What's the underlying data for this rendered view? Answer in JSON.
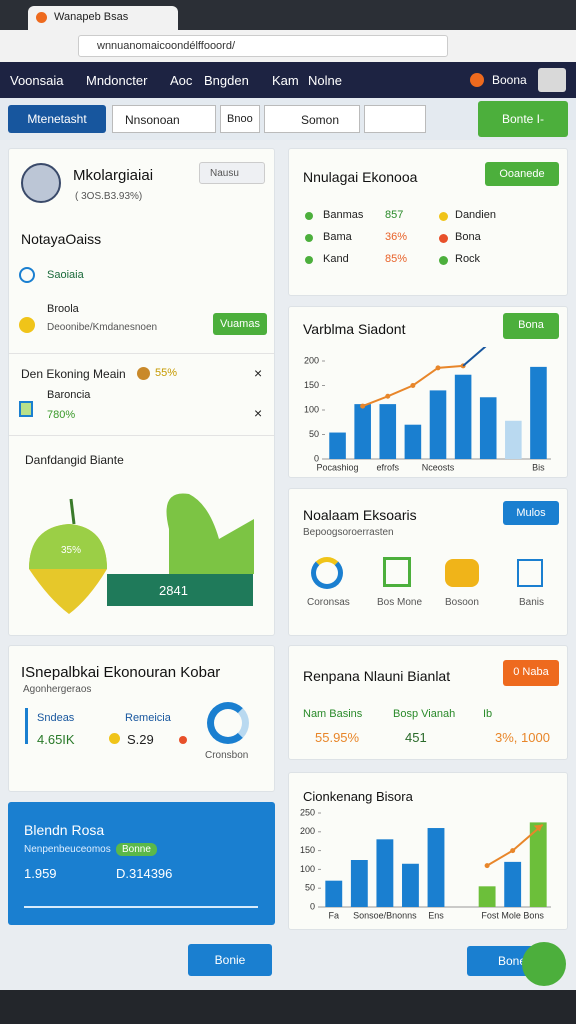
{
  "browser": {
    "tab_title": "Wanapeb Bsas",
    "url": "wnnuanomaicoondélffooord/"
  },
  "nav": {
    "items": [
      "Voonsaia",
      "Mndoncter",
      "Aoc",
      "Bngden",
      "Kam",
      "Nolne"
    ],
    "user": "Boona"
  },
  "toolbar": {
    "search": "Mtenetasht",
    "input": "Nnsonoan",
    "field": "Bnoo",
    "filter": "Somon",
    "button": "Bonte I-"
  },
  "profile": {
    "name": "Mkolargiaiai",
    "sub": "( 3OS.B3.93%)",
    "dropdown": "Nausu",
    "section": "NotayaOaiss",
    "item1": "Saoiaia",
    "item2_title": "Broola",
    "item2_sub": "Deoonibe/Kmdanesnoen",
    "button": "Vuamas",
    "alert1": "Den Ekoning Meain",
    "alert1_value": "55%",
    "alert2_title": "Baroncia",
    "alert2_sub": "780%",
    "chart_title": "Danfdangid Biante",
    "pct": "35%",
    "total": "2841"
  },
  "summary": {
    "title": "Nnulagai Ekonooa",
    "button": "Ooanede",
    "rows": [
      [
        "Banmas",
        "857",
        "Dandien"
      ],
      [
        "Bama",
        "36%",
        "Bona"
      ],
      [
        "Kand",
        "85%",
        "Rock"
      ]
    ]
  },
  "services": {
    "title": "Noalaam Eksoaris",
    "sub": "Bepoogsoroerrasten",
    "button": "Mulos",
    "icons": [
      "Coronsas",
      "Bos Mone",
      "Bosoon",
      "Banis"
    ]
  },
  "stats": {
    "title": "ISnepalbkai Ekonouran Kobar",
    "sub": "Agonhergeraos",
    "a_label": "Sndeas",
    "a_value": "4.65IK",
    "b_label": "Remeicia",
    "b_value": "S.29",
    "donut": "Cronsbon"
  },
  "plan": {
    "title": "Renpana Nlauni Bianlat",
    "button": "0 Naba",
    "items": [
      [
        "Nam Basins",
        "55.95%"
      ],
      [
        "Bosp Vianah",
        "451"
      ],
      [
        "Ib",
        "3%, 1000"
      ]
    ]
  },
  "balance": {
    "title": "Blendn Rosa",
    "sub": "Nenpenbeuceomos",
    "tag": "Bonne",
    "a": "1.959",
    "b": "D.314396"
  },
  "buttons": {
    "left": "Bonie",
    "right": "Bone"
  },
  "chart_data": [
    {
      "type": "bar",
      "title": "Varblma Siadont",
      "button": "Bona",
      "categories": [
        "Pocashiog",
        null,
        "efrofs",
        null,
        "Nceosts",
        null,
        null,
        null,
        "Bis"
      ],
      "ylim": [
        0,
        200
      ],
      "yticks": [
        0,
        50,
        100,
        150,
        200
      ],
      "series": [
        {
          "type": "bar",
          "color": "#1a7fd0",
          "colors": [
            "#1a7fd0",
            "#1a7fd0",
            "#1a7fd0",
            "#1a7fd0",
            "#1a7fd0",
            "#1a7fd0",
            "#1a7fd0",
            "#b9d9f0",
            "#1a7fd0"
          ],
          "values": [
            54,
            112,
            112,
            70,
            140,
            172,
            126,
            78,
            188
          ]
        },
        {
          "type": "line",
          "color": "#e8862a",
          "values": [
            null,
            108,
            128,
            150,
            186,
            190,
            null,
            null,
            null
          ]
        }
      ]
    },
    {
      "type": "bar",
      "title": "Cionkenang Bisora",
      "categories": [
        "Fa",
        null,
        "Sonsoe/Bnonns",
        null,
        "Ens",
        null,
        null,
        "Fost Mole Bons",
        null
      ],
      "ylim": [
        0,
        250
      ],
      "yticks": [
        0,
        50,
        100,
        150,
        200,
        250
      ],
      "series": [
        {
          "type": "bar",
          "color": "#1a7fd0",
          "colors": [
            "#1a7fd0",
            "#1a7fd0",
            "#1a7fd0",
            "#1a7fd0",
            "#1a7fd0",
            "#1a7fd0",
            "#6cbf3a",
            "#1a7fd0",
            "#6cbf3a"
          ],
          "values": [
            70,
            125,
            180,
            115,
            210,
            null,
            55,
            120,
            225
          ]
        },
        {
          "type": "line",
          "color": "#e8862a",
          "values": [
            null,
            null,
            null,
            null,
            null,
            null,
            110,
            150,
            null
          ]
        }
      ]
    }
  ]
}
